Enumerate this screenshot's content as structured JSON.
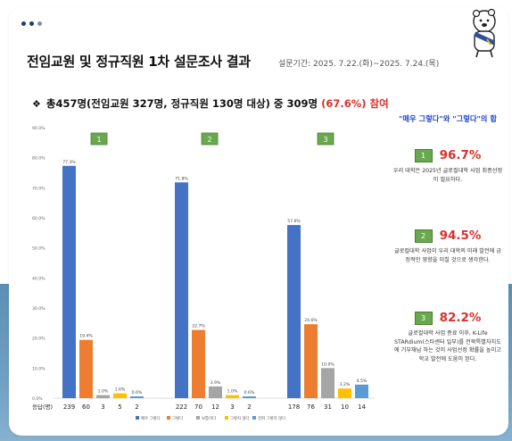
{
  "header": {
    "title": "전임교원 및 정규직원 1차 설문조사 결과",
    "period": "설문기간: 2025. 7.22.(화)~2025. 7.24.(목)"
  },
  "summary": {
    "bullet": "❖",
    "text": "총457명(전임교원 327명, 정규직원 130명 대상) 중 309명",
    "highlight": "(67.6%) 참여"
  },
  "side": {
    "heading": "\"매우 그렇다\"와 \"그렇다\"의 합",
    "items": [
      {
        "num": "1",
        "pct": "96.7%",
        "desc": "우리 대학은 2025년 글로컬대학 사업 최종선정이 필요하다."
      },
      {
        "num": "2",
        "pct": "94.5%",
        "desc": "글로컬대학 사업이 우리 대학의 미래 발전에 긍정적인 영향을 미칠 것으로 생각한다."
      },
      {
        "num": "3",
        "pct": "82.2%",
        "desc": "글로컬대학 사업 종료 이후, K-Life STARdium(스타센터 일부)를 전북특별자치도에 기부채납 하는 것이 사업선정 확률을 높이고 학교 발전에 도움이 된다."
      }
    ]
  },
  "chart_data": {
    "type": "bar",
    "ylim": [
      0,
      90
    ],
    "yticks": [
      "0.0%",
      "10.0%",
      "20.0%",
      "30.0%",
      "40.0%",
      "50.0%",
      "60.0%",
      "70.0%",
      "80.0%",
      "90.0%"
    ],
    "count_row_label": "응답(명)",
    "groups": [
      "1",
      "2",
      "3"
    ],
    "series": [
      {
        "name": "매우 그렇다",
        "color": "#4472c4",
        "values": [
          77.3,
          71.8,
          57.6
        ],
        "labels": [
          "77.3%",
          "71.8%",
          "57.6%"
        ],
        "counts": [
          "239",
          "222",
          "178"
        ]
      },
      {
        "name": "그렇다",
        "color": "#ed7d31",
        "values": [
          19.4,
          22.7,
          24.6
        ],
        "labels": [
          "19.4%",
          "22.7%",
          "24.6%"
        ],
        "counts": [
          "60",
          "70",
          "76"
        ]
      },
      {
        "name": "보통이다",
        "color": "#a5a5a5",
        "values": [
          1.0,
          3.9,
          10.0
        ],
        "labels": [
          "1.0%",
          "3.9%",
          "10.0%"
        ],
        "counts": [
          "3",
          "12",
          "31"
        ]
      },
      {
        "name": "그렇지 않다",
        "color": "#ffc000",
        "values": [
          1.6,
          1.0,
          3.2
        ],
        "labels": [
          "1.6%",
          "1.0%",
          "3.2%"
        ],
        "counts": [
          "5",
          "3",
          "10"
        ]
      },
      {
        "name": "전혀 그렇지 않다",
        "color": "#5b9bd5",
        "values": [
          0.6,
          0.6,
          4.5
        ],
        "labels": [
          "0.6%",
          "0.6%",
          "4.5%"
        ],
        "counts": [
          "2",
          "2",
          "14"
        ]
      }
    ]
  }
}
